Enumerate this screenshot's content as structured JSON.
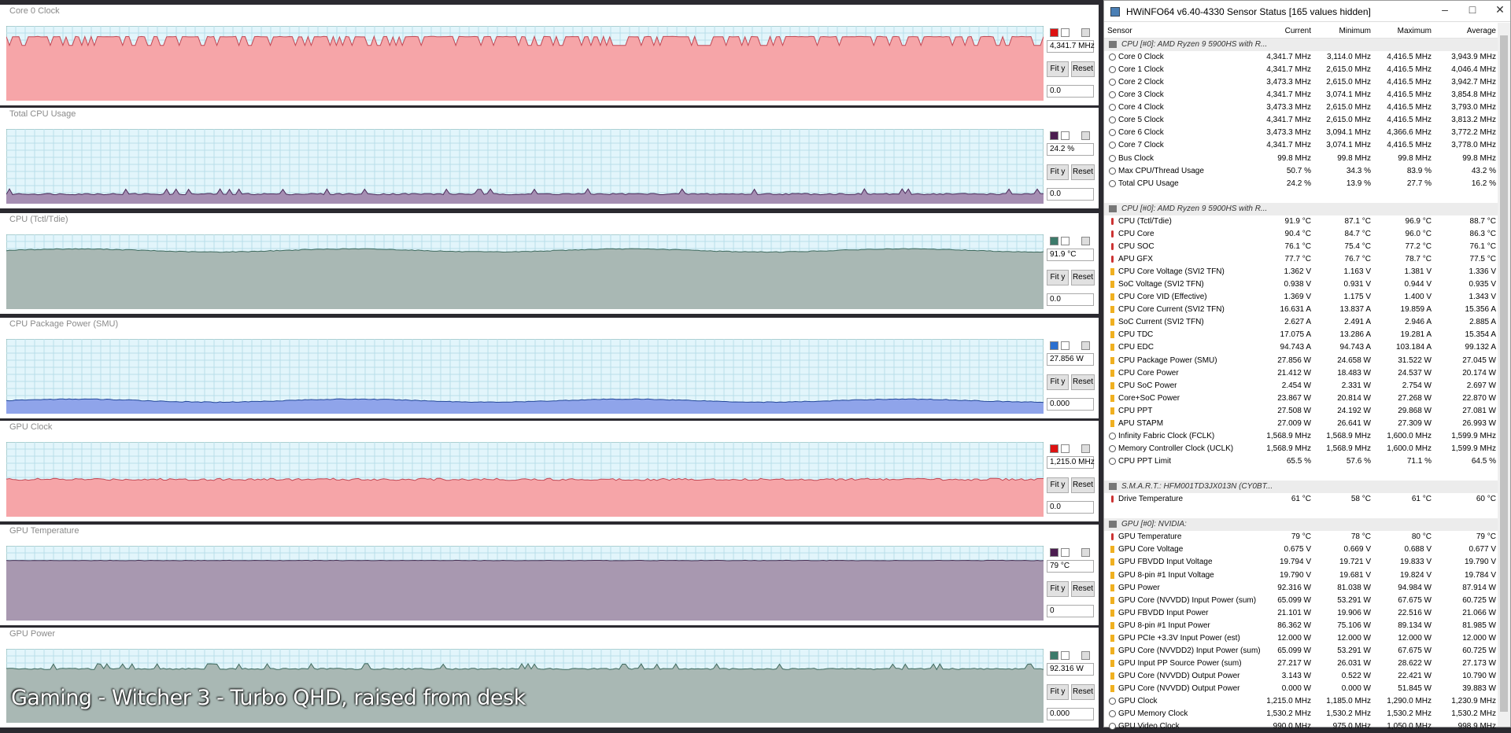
{
  "graphs": [
    {
      "title": "Core 0 Clock",
      "current": "4,341.7 MHz",
      "minimum": "0.0"
    },
    {
      "title": "Total CPU Usage",
      "current": "24.2 %",
      "minimum": "0.0"
    },
    {
      "title": "CPU (Tctl/Tdie)",
      "current": "91.9 °C",
      "minimum": "0.0"
    },
    {
      "title": "CPU Package Power (SMU)",
      "current": "27.856 W",
      "minimum": "0.000"
    },
    {
      "title": "GPU Clock",
      "current": "1,215.0 MHz",
      "minimum": "0.0"
    },
    {
      "title": "GPU Temperature",
      "current": "79 °C",
      "minimum": "0"
    },
    {
      "title": "GPU Power",
      "current": "92.316 W",
      "minimum": "0.000"
    }
  ],
  "graph_buttons": [
    "Fit y",
    "Reset"
  ],
  "sensor_window": {
    "title": "HWiNFO64 v6.40-4330 Sensor Status [165 values hidden]",
    "columns": [
      "Sensor",
      "Current",
      "Minimum",
      "Maximum",
      "Average"
    ],
    "groups": [
      {
        "name": "CPU [#0]: AMD Ryzen 9 5900HS with R...",
        "rows": [
          [
            "Core 0 Clock",
            "4,341.7 MHz",
            "3,114.0 MHz",
            "4,416.5 MHz",
            "3,943.9 MHz"
          ],
          [
            "Core 1 Clock",
            "4,341.7 MHz",
            "2,615.0 MHz",
            "4,416.5 MHz",
            "4,046.4 MHz"
          ],
          [
            "Core 2 Clock",
            "3,473.3 MHz",
            "2,615.0 MHz",
            "4,416.5 MHz",
            "3,942.7 MHz"
          ],
          [
            "Core 3 Clock",
            "4,341.7 MHz",
            "3,074.1 MHz",
            "4,416.5 MHz",
            "3,854.8 MHz"
          ],
          [
            "Core 4 Clock",
            "3,473.3 MHz",
            "2,615.0 MHz",
            "4,416.5 MHz",
            "3,793.0 MHz"
          ],
          [
            "Core 5 Clock",
            "4,341.7 MHz",
            "2,615.0 MHz",
            "4,416.5 MHz",
            "3,813.2 MHz"
          ],
          [
            "Core 6 Clock",
            "3,473.3 MHz",
            "3,094.1 MHz",
            "4,366.6 MHz",
            "3,772.2 MHz"
          ],
          [
            "Core 7 Clock",
            "4,341.7 MHz",
            "3,074.1 MHz",
            "4,416.5 MHz",
            "3,778.0 MHz"
          ],
          [
            "Bus Clock",
            "99.8 MHz",
            "99.8 MHz",
            "99.8 MHz",
            "99.8 MHz"
          ],
          [
            "Max CPU/Thread Usage",
            "50.7 %",
            "34.3 %",
            "83.9 %",
            "43.2 %"
          ],
          [
            "Total CPU Usage",
            "24.2 %",
            "13.9 %",
            "27.7 %",
            "16.2 %"
          ]
        ]
      },
      {
        "name": "CPU [#0]: AMD Ryzen 9 5900HS with R...",
        "rows": [
          [
            "CPU (Tctl/Tdie)",
            "91.9 °C",
            "87.1 °C",
            "96.9 °C",
            "88.7 °C"
          ],
          [
            "CPU Core",
            "90.4 °C",
            "84.7 °C",
            "96.0 °C",
            "86.3 °C"
          ],
          [
            "CPU SOC",
            "76.1 °C",
            "75.4 °C",
            "77.2 °C",
            "76.1 °C"
          ],
          [
            "APU GFX",
            "77.7 °C",
            "76.7 °C",
            "78.7 °C",
            "77.5 °C"
          ],
          [
            "CPU Core Voltage (SVI2 TFN)",
            "1.362 V",
            "1.163 V",
            "1.381 V",
            "1.336 V"
          ],
          [
            "SoC Voltage (SVI2 TFN)",
            "0.938 V",
            "0.931 V",
            "0.944 V",
            "0.935 V"
          ],
          [
            "CPU Core VID (Effective)",
            "1.369 V",
            "1.175 V",
            "1.400 V",
            "1.343 V"
          ],
          [
            "CPU Core Current (SVI2 TFN)",
            "16.631 A",
            "13.837 A",
            "19.859 A",
            "15.356 A"
          ],
          [
            "SoC Current (SVI2 TFN)",
            "2.627 A",
            "2.491 A",
            "2.946 A",
            "2.885 A"
          ],
          [
            "CPU TDC",
            "17.075 A",
            "13.286 A",
            "19.281 A",
            "15.354 A"
          ],
          [
            "CPU EDC",
            "94.743 A",
            "94.743 A",
            "103.184 A",
            "99.132 A"
          ],
          [
            "CPU Package Power (SMU)",
            "27.856 W",
            "24.658 W",
            "31.522 W",
            "27.045 W"
          ],
          [
            "CPU Core Power",
            "21.412 W",
            "18.483 W",
            "24.537 W",
            "20.174 W"
          ],
          [
            "CPU SoC Power",
            "2.454 W",
            "2.331 W",
            "2.754 W",
            "2.697 W"
          ],
          [
            "Core+SoC Power",
            "23.867 W",
            "20.814 W",
            "27.268 W",
            "22.870 W"
          ],
          [
            "CPU PPT",
            "27.508 W",
            "24.192 W",
            "29.868 W",
            "27.081 W"
          ],
          [
            "APU STAPM",
            "27.009 W",
            "26.641 W",
            "27.309 W",
            "26.993 W"
          ],
          [
            "Infinity Fabric Clock (FCLK)",
            "1,568.9 MHz",
            "1,568.9 MHz",
            "1,600.0 MHz",
            "1,599.9 MHz"
          ],
          [
            "Memory Controller Clock (UCLK)",
            "1,568.9 MHz",
            "1,568.9 MHz",
            "1,600.0 MHz",
            "1,599.9 MHz"
          ],
          [
            "CPU PPT Limit",
            "65.5 %",
            "57.6 %",
            "71.1 %",
            "64.5 %"
          ]
        ]
      },
      {
        "name": "S.M.A.R.T.: HFM001TD3JX013N (CY0BT...",
        "rows": [
          [
            "Drive Temperature",
            "61 °C",
            "58 °C",
            "61 °C",
            "60 °C"
          ]
        ]
      },
      {
        "name": "GPU [#0]: NVIDIA:",
        "rows": [
          [
            "GPU Temperature",
            "79 °C",
            "78 °C",
            "80 °C",
            "79 °C"
          ],
          [
            "GPU Core Voltage",
            "0.675 V",
            "0.669 V",
            "0.688 V",
            "0.677 V"
          ],
          [
            "GPU FBVDD Input Voltage",
            "19.794 V",
            "19.721 V",
            "19.833 V",
            "19.790 V"
          ],
          [
            "GPU 8-pin #1 Input Voltage",
            "19.790 V",
            "19.681 V",
            "19.824 V",
            "19.784 V"
          ],
          [
            "GPU Power",
            "92.316 W",
            "81.038 W",
            "94.984 W",
            "87.914 W"
          ],
          [
            "GPU Core (NVVDD) Input Power (sum)",
            "65.099 W",
            "53.291 W",
            "67.675 W",
            "60.725 W"
          ],
          [
            "GPU FBVDD Input Power",
            "21.101 W",
            "19.906 W",
            "22.516 W",
            "21.066 W"
          ],
          [
            "GPU 8-pin #1 Input Power",
            "86.362 W",
            "75.106 W",
            "89.134 W",
            "81.985 W"
          ],
          [
            "GPU PCIe +3.3V Input Power (est)",
            "12.000 W",
            "12.000 W",
            "12.000 W",
            "12.000 W"
          ],
          [
            "GPU Core (NVVDD2) Input Power (sum)",
            "65.099 W",
            "53.291 W",
            "67.675 W",
            "60.725 W"
          ],
          [
            "GPU Input PP Source Power (sum)",
            "27.217 W",
            "26.031 W",
            "28.622 W",
            "27.173 W"
          ],
          [
            "GPU Core (NVVDD) Output Power",
            "3.143 W",
            "0.522 W",
            "22.421 W",
            "10.790 W"
          ],
          [
            "GPU Core (NVVDD) Output Power",
            "0.000 W",
            "0.000 W",
            "51.845 W",
            "39.883 W"
          ],
          [
            "GPU Clock",
            "1,215.0 MHz",
            "1,185.0 MHz",
            "1,290.0 MHz",
            "1,230.9 MHz"
          ],
          [
            "GPU Memory Clock",
            "1,530.2 MHz",
            "1,530.2 MHz",
            "1,530.2 MHz",
            "1,530.2 MHz"
          ],
          [
            "GPU Video Clock",
            "990.0 MHz",
            "975.0 MHz",
            "1,050.0 MHz",
            "998.9 MHz"
          ]
        ]
      }
    ]
  },
  "caption": "Gaming - Witcher 3 - Turbo QHD, raised from desk"
}
